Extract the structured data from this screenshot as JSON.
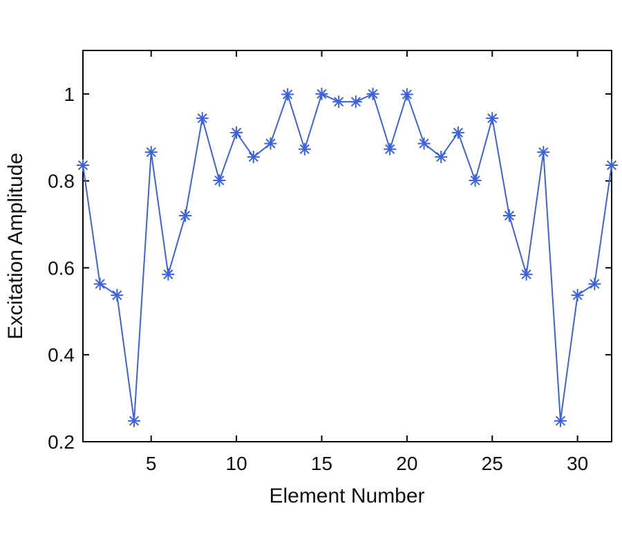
{
  "chart_data": {
    "type": "line",
    "xlabel": "Element Number",
    "ylabel": "Excitation Amplitude",
    "xlim": [
      1,
      32
    ],
    "ylim": [
      0.2,
      1.1
    ],
    "x_ticks": [
      5,
      10,
      15,
      20,
      25,
      30
    ],
    "y_ticks": [
      0.2,
      0.4,
      0.6,
      0.8,
      1.0
    ],
    "x_tick_labels": [
      "5",
      "10",
      "15",
      "20",
      "25",
      "30"
    ],
    "y_tick_labels": [
      "0.2",
      "0.4",
      "0.6",
      "0.8",
      "1"
    ],
    "grid": false,
    "marker": "asterisk",
    "line_color": "#3a62e0",
    "series": [
      {
        "x": [
          1,
          2,
          3,
          4,
          5,
          6,
          7,
          8,
          9,
          10,
          11,
          12,
          13,
          14,
          15,
          16,
          17,
          18,
          19,
          20,
          21,
          22,
          23,
          24,
          25,
          26,
          27,
          28,
          29,
          30,
          31,
          32
        ],
        "values": [
          0.836,
          0.563,
          0.537,
          0.248,
          0.866,
          0.585,
          0.72,
          0.944,
          0.801,
          0.911,
          0.855,
          0.886,
          0.999,
          0.873,
          1.0,
          0.982,
          0.982,
          1.0,
          0.873,
          0.999,
          0.886,
          0.855,
          0.911,
          0.801,
          0.944,
          0.72,
          0.585,
          0.866,
          0.248,
          0.537,
          0.563,
          0.836
        ]
      }
    ]
  }
}
